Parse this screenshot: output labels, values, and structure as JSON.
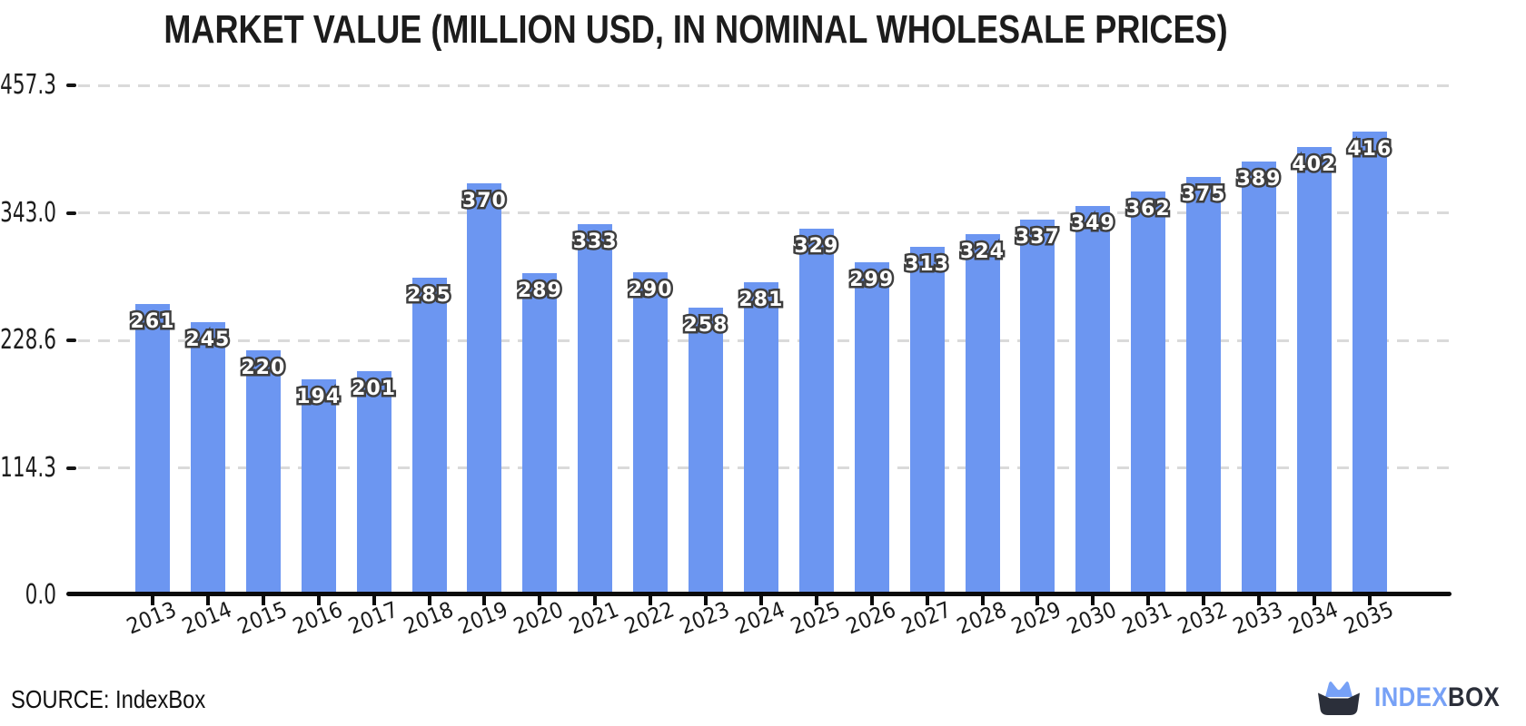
{
  "chart_data": {
    "type": "bar",
    "title": "MARKET VALUE (MILLION USD, IN NOMINAL WHOLESALE PRICES)",
    "categories": [
      "2013",
      "2014",
      "2015",
      "2016",
      "2017",
      "2018",
      "2019",
      "2020",
      "2021",
      "2022",
      "2023",
      "2024",
      "2025",
      "2026",
      "2027",
      "2028",
      "2029",
      "2030",
      "2031",
      "2032",
      "2033",
      "2034",
      "2035"
    ],
    "values": [
      261,
      245,
      220,
      194,
      201,
      285,
      370,
      289,
      333,
      290,
      258,
      281,
      329,
      299,
      313,
      324,
      337,
      349,
      362,
      375,
      389,
      402,
      416
    ],
    "xlabel": "",
    "ylabel": "",
    "ylim": [
      0,
      457.3
    ],
    "yticks": [
      {
        "label": "0.0",
        "value": 0
      },
      {
        "label": "114.3",
        "value": 114.325
      },
      {
        "label": "228.6",
        "value": 228.65
      },
      {
        "label": "343.0",
        "value": 342.975
      },
      {
        "label": "457.3",
        "value": 457.3
      }
    ],
    "grid": "horizontal-dashed",
    "legend": "none",
    "bar_color": "#6C96F1",
    "bar_label_text_color": "#ffffff",
    "bar_label_outline_color": "#3e3e3e",
    "gridline_color": "#dadada",
    "axis_color": "#0b0b0b"
  },
  "footer": {
    "source": "SOURCE: IndexBox",
    "logo": {
      "primary": "INDEX",
      "secondary": "BOX",
      "primary_color": "#77A1F6",
      "secondary_color": "#2B2F3A"
    }
  }
}
